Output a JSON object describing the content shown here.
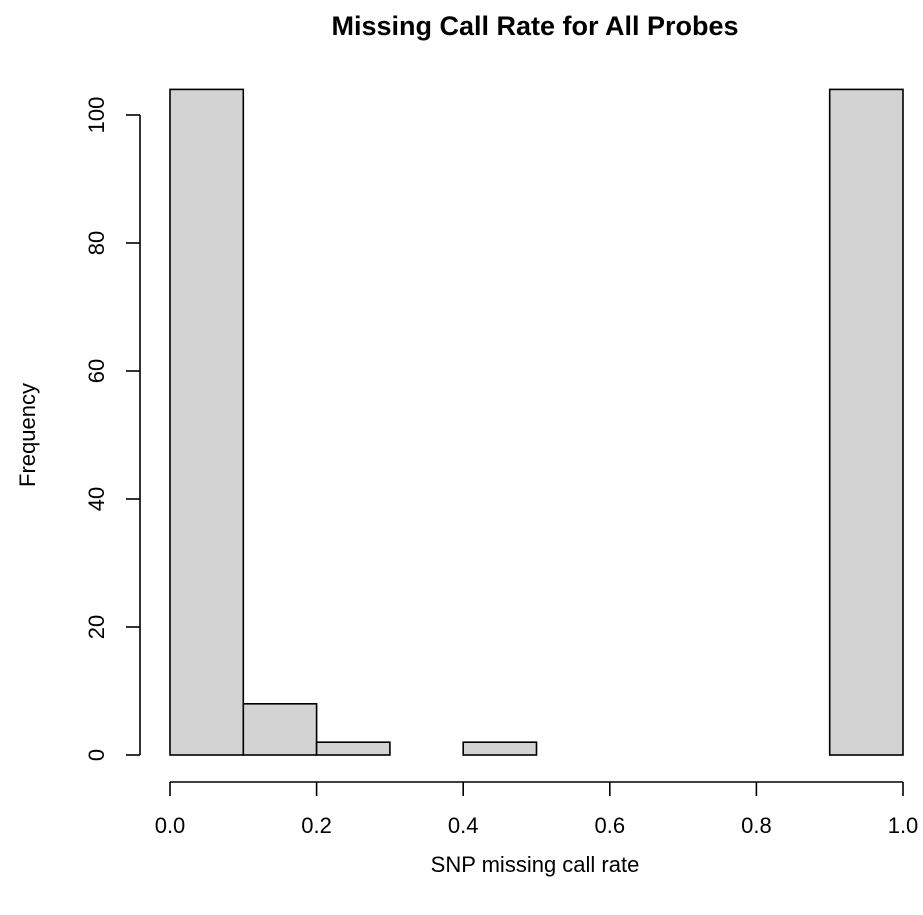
{
  "chart_data": {
    "type": "bar",
    "title": "Missing Call Rate for All Probes",
    "xlabel": "SNP missing call rate",
    "ylabel": "Frequency",
    "bins": [
      {
        "x0": 0.0,
        "x1": 0.1,
        "count": 104
      },
      {
        "x0": 0.1,
        "x1": 0.2,
        "count": 8
      },
      {
        "x0": 0.2,
        "x1": 0.3,
        "count": 2
      },
      {
        "x0": 0.3,
        "x1": 0.4,
        "count": 0
      },
      {
        "x0": 0.4,
        "x1": 0.5,
        "count": 2
      },
      {
        "x0": 0.5,
        "x1": 0.6,
        "count": 0
      },
      {
        "x0": 0.6,
        "x1": 0.7,
        "count": 0
      },
      {
        "x0": 0.7,
        "x1": 0.8,
        "count": 0
      },
      {
        "x0": 0.8,
        "x1": 0.9,
        "count": 0
      },
      {
        "x0": 0.9,
        "x1": 1.0,
        "count": 104
      }
    ],
    "xlim": [
      0,
      1
    ],
    "ylim": [
      0,
      104
    ],
    "x_ticks": [
      0.0,
      0.2,
      0.4,
      0.6,
      0.8,
      1.0
    ],
    "x_tick_labels": [
      "0.0",
      "0.2",
      "0.4",
      "0.6",
      "0.8",
      "1.0"
    ],
    "y_ticks": [
      0,
      20,
      40,
      60,
      80,
      100
    ],
    "y_tick_labels": [
      "0",
      "20",
      "40",
      "60",
      "80",
      "100"
    ],
    "bar_color": "#d3d3d3",
    "grid": false,
    "legend": "none"
  }
}
